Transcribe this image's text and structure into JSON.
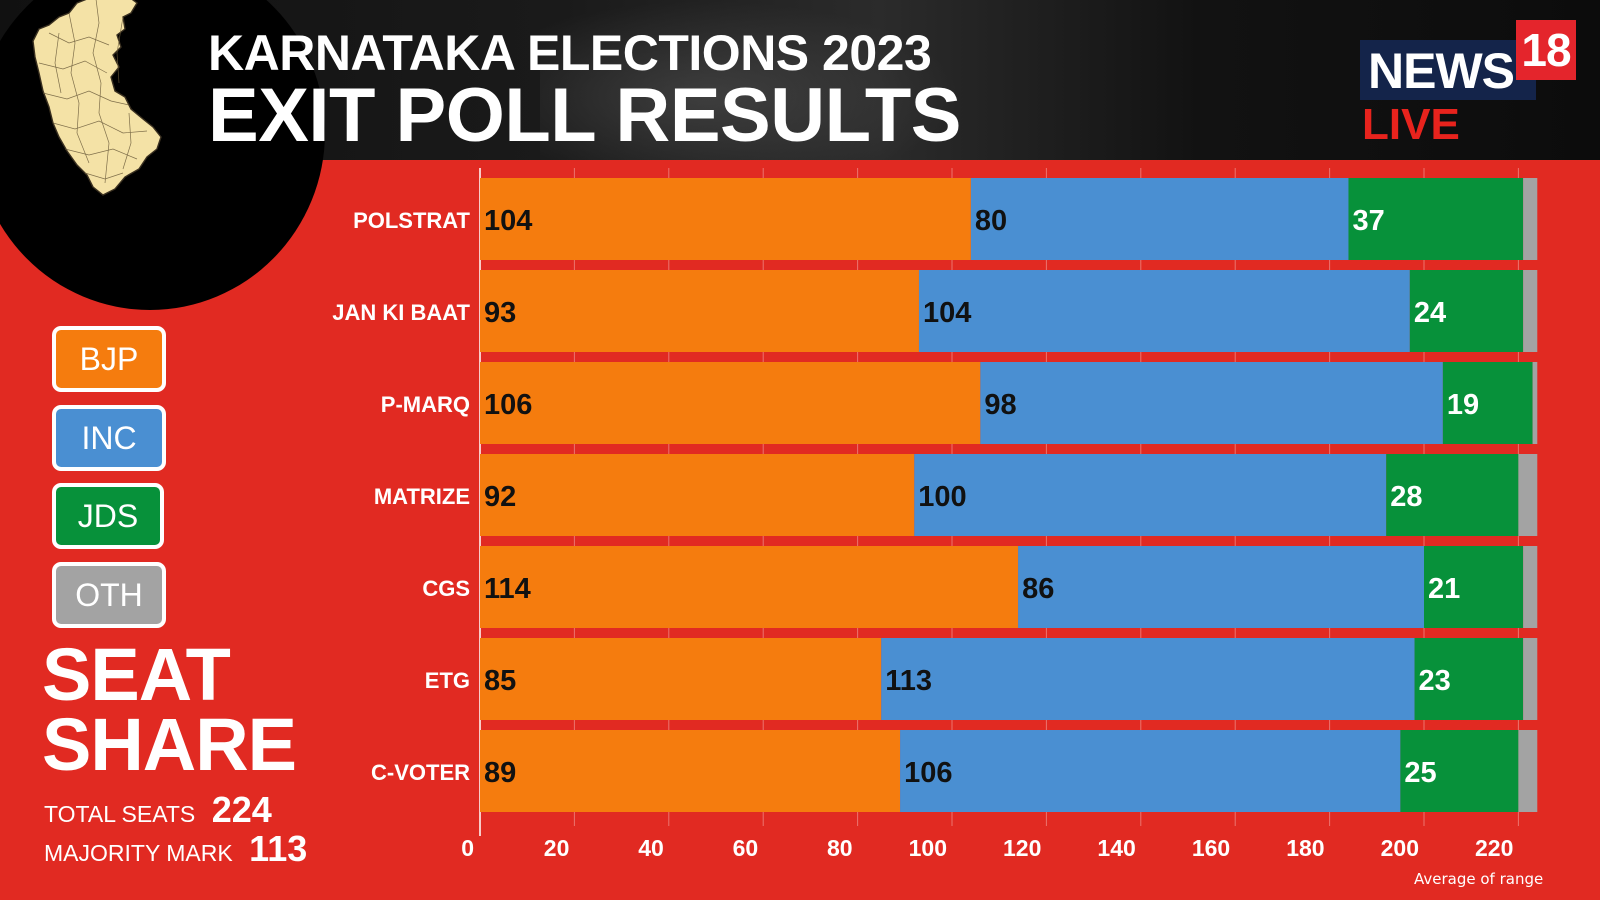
{
  "title_line1": "KARNATAKA ELECTIONS 2023",
  "title_line2": "EXIT POLL RESULTS",
  "logo": {
    "news": "NEWS",
    "number": "18",
    "live": "LIVE"
  },
  "legend": [
    {
      "label": "BJP",
      "color": "#f57c0e"
    },
    {
      "label": "INC",
      "color": "#4a8fd2"
    },
    {
      "label": "JDS",
      "color": "#07913a"
    },
    {
      "label": "OTH",
      "color": "#a3a3a3"
    }
  ],
  "seat_share": {
    "line1": "SEAT",
    "line2": "SHARE"
  },
  "stats": {
    "total_label": "TOTAL SEATS",
    "total_value": "224",
    "majority_label": "MAJORITY MARK",
    "majority_value": "113"
  },
  "note": "Average of range",
  "chart_data": {
    "type": "bar",
    "orientation": "horizontal",
    "stacked": true,
    "categories": [
      "POLSTRAT",
      "JAN KI BAAT",
      "P-MARQ",
      "MATRIZE",
      "CGS",
      "ETG",
      "C-VOTER"
    ],
    "series": [
      {
        "name": "BJP",
        "color": "#f57c0e",
        "values": [
          104,
          93,
          106,
          92,
          114,
          85,
          89
        ]
      },
      {
        "name": "INC",
        "color": "#4a8fd2",
        "values": [
          80,
          104,
          98,
          100,
          86,
          113,
          106
        ]
      },
      {
        "name": "JDS",
        "color": "#07913a",
        "values": [
          37,
          24,
          19,
          28,
          21,
          23,
          25
        ]
      },
      {
        "name": "OTH",
        "color": "#a3a3a3",
        "values": [
          3,
          3,
          1,
          4,
          3,
          3,
          4
        ]
      }
    ],
    "xlim": [
      0,
      224
    ],
    "xticks": [
      0,
      20,
      40,
      60,
      80,
      100,
      120,
      140,
      160,
      180,
      200,
      220
    ],
    "grid": true,
    "legend": "left"
  }
}
